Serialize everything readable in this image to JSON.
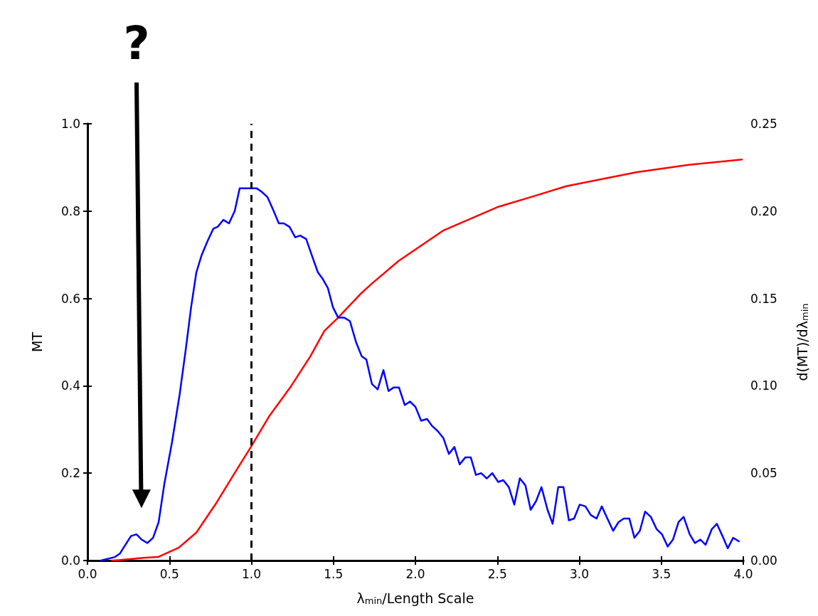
{
  "chart_data": {
    "type": "line",
    "xlabel": "λ$_{min}$/Length Scale",
    "ylabel": "MT",
    "y2label": "d(MT)/dλ$_{min}$",
    "annotations": [
      "?"
    ],
    "xlim": [
      0,
      4
    ],
    "xticks": [
      {
        "value": 0,
        "label": "0.0"
      },
      {
        "value": 0.5,
        "label": "0.5"
      },
      {
        "value": 1,
        "label": "1.0"
      },
      {
        "value": 1.5,
        "label": "1.5"
      },
      {
        "value": 2,
        "label": "2.0"
      },
      {
        "value": 2.5,
        "label": "2.5"
      },
      {
        "value": 3,
        "label": "3.0"
      },
      {
        "value": 3.5,
        "label": "3.5"
      },
      {
        "value": 4,
        "label": "4.0"
      }
    ],
    "ylim": [
      0,
      1
    ],
    "yticks": [
      {
        "value": 0,
        "label": "0.0"
      },
      {
        "value": 0.2,
        "label": "0.2"
      },
      {
        "value": 0.4,
        "label": "0.4"
      },
      {
        "value": 0.6,
        "label": "0.6"
      },
      {
        "value": 0.8,
        "label": "0.8"
      },
      {
        "value": 1,
        "label": "1.0"
      }
    ],
    "y2lim": [
      0,
      0.25
    ],
    "y2ticks": [
      {
        "value": 0,
        "label": "0.00"
      },
      {
        "value": 0.05,
        "label": "0.05"
      },
      {
        "value": 0.1,
        "label": "0.10"
      },
      {
        "value": 0.15,
        "label": "0.15"
      },
      {
        "value": 0.2,
        "label": "0.20"
      },
      {
        "value": 0.25,
        "label": "0.25"
      }
    ],
    "grid": false,
    "marker": "none",
    "line_style": "solid",
    "ref_lines": [
      {
        "axis": "x",
        "value": 1,
        "color": "#000000",
        "line_style": "dashed"
      }
    ],
    "series": [
      {
        "color": "#ff0000",
        "x": [
          0.15,
          0.19,
          0.34,
          0.43,
          0.555,
          0.664,
          0.781,
          0.894,
          1.0,
          1.111,
          1.236,
          1.36,
          1.445,
          1.521,
          1.67,
          1.731,
          1.898,
          2.172,
          2.499,
          2.746,
          2.92,
          3.345,
          3.666,
          3.991
        ],
        "values": [
          0,
          0.001,
          0.006,
          0.008,
          0.029,
          0.064,
          0.129,
          0.198,
          0.262,
          0.332,
          0.396,
          0.468,
          0.526,
          0.553,
          0.612,
          0.633,
          0.686,
          0.756,
          0.809,
          0.837,
          0.857,
          0.889,
          0.906,
          0.918
        ]
      },
      {
        "color": "#0000ff",
        "axis": "y2",
        "x": [
          0.082,
          0.167,
          0.198,
          0.265,
          0.299,
          0.33,
          0.365,
          0.4,
          0.434,
          0.469,
          0.516,
          0.562,
          0.601,
          0.632,
          0.664,
          0.697,
          0.733,
          0.768,
          0.794,
          0.829,
          0.863,
          0.898,
          0.928,
          1.001,
          1.033,
          1.063,
          1.098,
          1.131,
          1.167,
          1.197,
          1.232,
          1.267,
          1.297,
          1.334,
          1.367,
          1.405,
          1.436,
          1.466,
          1.497,
          1.529,
          1.566,
          1.601,
          1.638,
          1.672,
          1.701,
          1.735,
          1.77,
          1.805,
          1.836,
          1.866,
          1.9,
          1.935,
          1.967,
          2.0,
          2.035,
          2.071,
          2.102,
          2.137,
          2.171,
          2.204,
          2.238,
          2.27,
          2.304,
          2.338,
          2.369,
          2.401,
          2.435,
          2.469,
          2.505,
          2.536,
          2.57,
          2.603,
          2.637,
          2.671,
          2.703,
          2.736,
          2.769,
          2.806,
          2.837,
          2.871,
          2.903,
          2.936,
          2.968,
          3.002,
          3.037,
          3.07,
          3.105,
          3.137,
          3.171,
          3.206,
          3.239,
          3.271,
          3.305,
          3.336,
          3.369,
          3.401,
          3.436,
          3.471,
          3.504,
          3.539,
          3.571,
          3.605,
          3.636,
          3.673,
          3.705,
          3.738,
          3.77,
          3.808,
          3.839,
          3.873,
          3.905,
          3.938,
          3.973
        ],
        "values": [
          0,
          0.002,
          0.004,
          0.014,
          0.015,
          0.012,
          0.01,
          0.013,
          0.022,
          0.044,
          0.068,
          0.095,
          0.122,
          0.145,
          0.165,
          0.175,
          0.183,
          0.19,
          0.191,
          0.195,
          0.193,
          0.2,
          0.213,
          0.213,
          0.213,
          0.211,
          0.208,
          0.201,
          0.193,
          0.193,
          0.191,
          0.185,
          0.186,
          0.184,
          0.175,
          0.165,
          0.161,
          0.156,
          0.145,
          0.139,
          0.139,
          0.137,
          0.125,
          0.117,
          0.115,
          0.101,
          0.098,
          0.109,
          0.097,
          0.099,
          0.099,
          0.089,
          0.091,
          0.088,
          0.08,
          0.081,
          0.077,
          0.074,
          0.07,
          0.061,
          0.065,
          0.055,
          0.059,
          0.059,
          0.049,
          0.05,
          0.047,
          0.05,
          0.045,
          0.046,
          0.042,
          0.032,
          0.047,
          0.043,
          0.029,
          0.034,
          0.042,
          0.029,
          0.021,
          0.042,
          0.042,
          0.023,
          0.024,
          0.032,
          0.031,
          0.026,
          0.024,
          0.031,
          0.024,
          0.017,
          0.022,
          0.024,
          0.024,
          0.013,
          0.017,
          0.028,
          0.025,
          0.018,
          0.015,
          0.008,
          0.012,
          0.022,
          0.025,
          0.015,
          0.01,
          0.012,
          0.009,
          0.018,
          0.021,
          0.014,
          0.007,
          0.013,
          0.011
        ]
      }
    ]
  }
}
